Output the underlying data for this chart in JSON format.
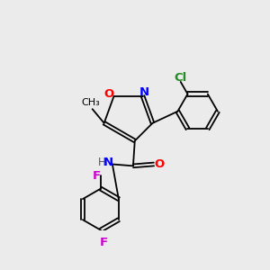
{
  "background_color": "#ebebeb",
  "bond_color": "#000000",
  "fig_size": [
    3.0,
    3.0
  ],
  "dpi": 100,
  "colors": {
    "O": "#ff0000",
    "N": "#0000ff",
    "Cl": "#228B22",
    "F": "#cc00cc",
    "C": "#000000",
    "H": "#555555"
  }
}
